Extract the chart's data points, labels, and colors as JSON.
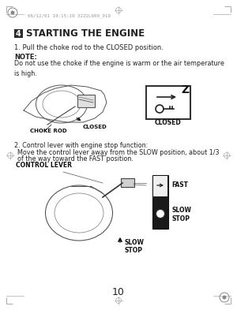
{
  "bg_color": "#ffffff",
  "header_text": "06/12/01 19:15:19 32Z2L600_010",
  "title_number": "4",
  "title_text": "STARTING THE ENGINE",
  "step1_text": "1. Pull the choke rod to the CLOSED position.",
  "note_label": "NOTE:",
  "note_text": "Do not use the choke if the engine is warm or the air temperature\nis high.",
  "choke_rod_label": "CHOKE ROD",
  "closed_label1": "CLOSED",
  "closed_label2": "CLOSED",
  "step2_text": "2. Control lever with engine stop function:\n   Move the control lever away from the SLOW position, about 1/3\n   of the way toward the FAST position.",
  "control_lever_label": "CONTROL LEVER",
  "fast_label": "FAST",
  "slow_label1": "SLOW",
  "stop_label1": "STOP",
  "slow_label2": "SLOW",
  "stop_label2": "STOP",
  "page_number": "10",
  "text_color": "#222222",
  "label_color": "#111111",
  "gray_line": "#aaaaaa",
  "dark_gray": "#555555",
  "mid_gray": "#888888"
}
